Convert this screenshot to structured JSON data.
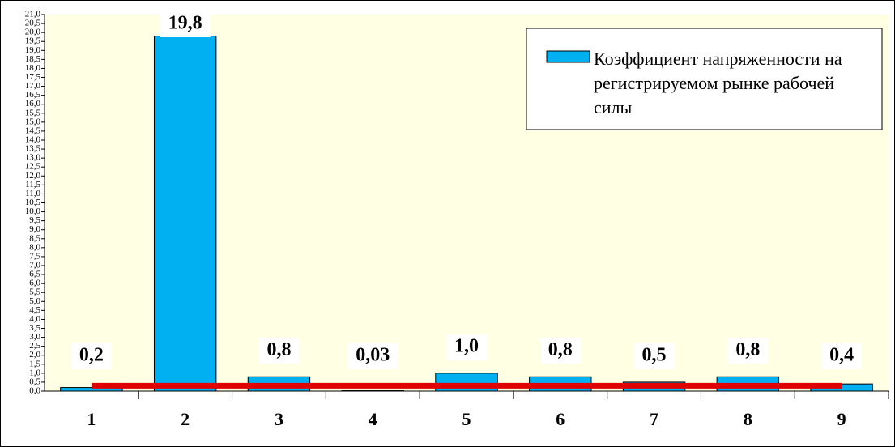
{
  "chart_data": {
    "type": "bar",
    "categories": [
      "1",
      "2",
      "3",
      "4",
      "5",
      "6",
      "7",
      "8",
      "9"
    ],
    "series": [
      {
        "name": "Коэффициент напряженности на регистрируемом рынке рабочей силы",
        "color": "#00b0f0",
        "values": [
          0.2,
          19.8,
          0.8,
          0.03,
          1.0,
          0.8,
          0.5,
          0.8,
          0.4
        ],
        "value_labels": [
          "0,2",
          "19,8",
          "0,8",
          "0,03",
          "1,0",
          "0,8",
          "0,5",
          "0,8",
          "0,4"
        ]
      },
      {
        "type": "line",
        "color": "#e00000",
        "values": [
          0.3,
          0.3,
          0.3,
          0.3,
          0.3,
          0.3,
          0.3,
          0.3,
          0.3
        ]
      }
    ],
    "ylim": [
      0,
      21
    ],
    "yticks": [
      {
        "value": 0,
        "label": "0,0"
      },
      {
        "value": 0.5,
        "label": "0,5"
      },
      {
        "value": 1,
        "label": "1,0"
      },
      {
        "value": 1.5,
        "label": "1,5"
      },
      {
        "value": 2,
        "label": "2,0"
      },
      {
        "value": 2.5,
        "label": "2,5"
      },
      {
        "value": 3,
        "label": "3,0"
      },
      {
        "value": 3.5,
        "label": "3,5"
      },
      {
        "value": 4,
        "label": "4,0"
      },
      {
        "value": 4.5,
        "label": "4,5"
      },
      {
        "value": 5,
        "label": "5,0"
      },
      {
        "value": 5.5,
        "label": "5,5"
      },
      {
        "value": 6,
        "label": "6,0"
      },
      {
        "value": 6.5,
        "label": "6,5"
      },
      {
        "value": 7,
        "label": "7,0"
      },
      {
        "value": 7.5,
        "label": "7,5"
      },
      {
        "value": 8,
        "label": "8,0"
      },
      {
        "value": 8.5,
        "label": "8,5"
      },
      {
        "value": 9,
        "label": "9,0"
      },
      {
        "value": 9.5,
        "label": "9,5"
      },
      {
        "value": 10,
        "label": "10,0"
      },
      {
        "value": 10.5,
        "label": "10,5"
      },
      {
        "value": 11,
        "label": "11,0"
      },
      {
        "value": 11.5,
        "label": "11,5"
      },
      {
        "value": 12,
        "label": "12,0"
      },
      {
        "value": 12.5,
        "label": "12,5"
      },
      {
        "value": 13,
        "label": "13,0"
      },
      {
        "value": 13.5,
        "label": "13,5"
      },
      {
        "value": 14,
        "label": "14,0"
      },
      {
        "value": 14.5,
        "label": "14,5"
      },
      {
        "value": 15,
        "label": "15,0"
      },
      {
        "value": 15.5,
        "label": "15,5"
      },
      {
        "value": 16,
        "label": "16,0"
      },
      {
        "value": 16.5,
        "label": "16,5"
      },
      {
        "value": 17,
        "label": "17,0"
      },
      {
        "value": 17.5,
        "label": "17,5"
      },
      {
        "value": 18,
        "label": "18,0"
      },
      {
        "value": 18.5,
        "label": "18,5"
      },
      {
        "value": 19,
        "label": "19,0"
      },
      {
        "value": 19.5,
        "label": "19,5"
      },
      {
        "value": 20,
        "label": "20,0"
      },
      {
        "value": 20.5,
        "label": "20,5"
      },
      {
        "value": 21,
        "label": "21,0"
      }
    ],
    "legend": "upper right"
  }
}
